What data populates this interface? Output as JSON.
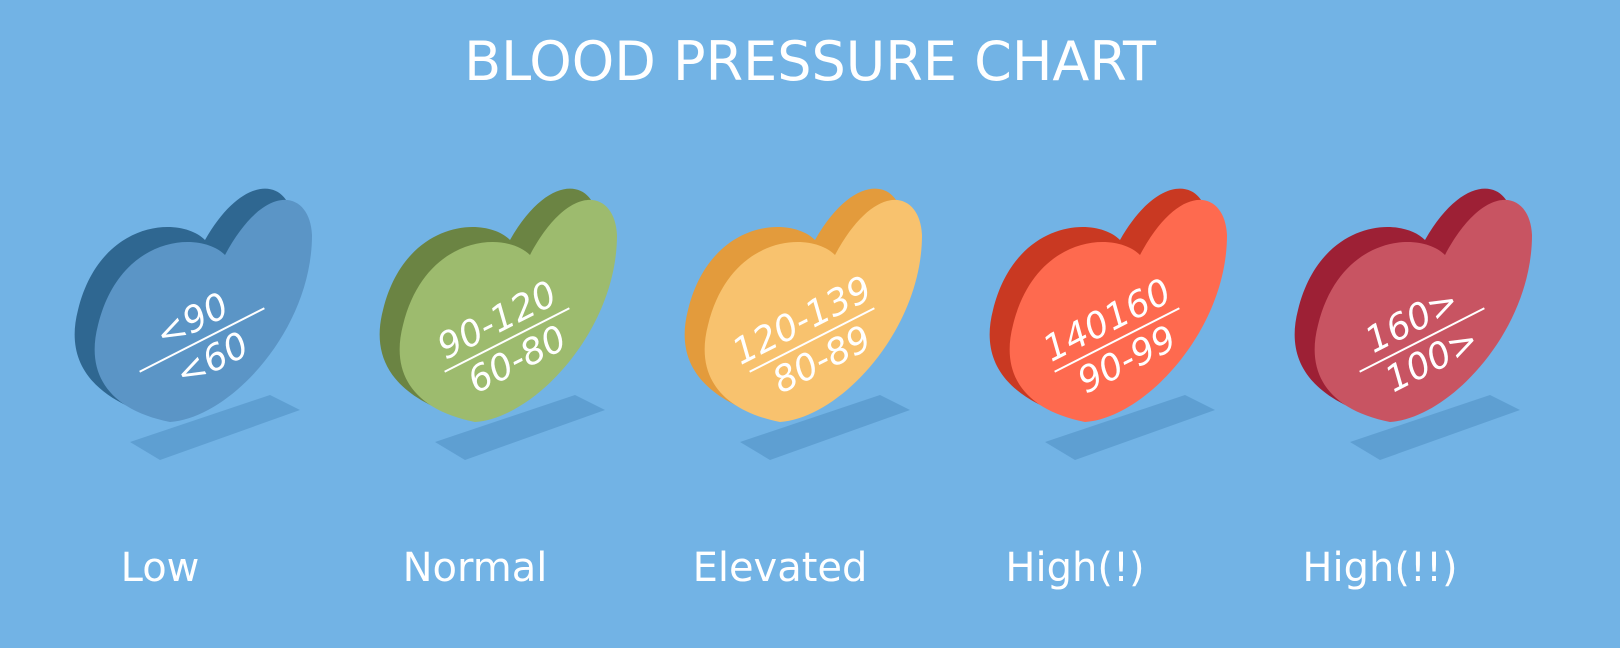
{
  "title": "BLOOD PRESSURE CHART",
  "categories": [
    {
      "label": "Low",
      "systolic": "<90",
      "diastolic": "<60",
      "face": "#5b95c6",
      "side": "#2f6791"
    },
    {
      "label": "Normal",
      "systolic": "90-120",
      "diastolic": "60-80",
      "face": "#9dbb6e",
      "side": "#6b8443"
    },
    {
      "label": "Elevated",
      "systolic": "120-139",
      "diastolic": "80-89",
      "face": "#f8c26e",
      "side": "#e39b3c"
    },
    {
      "label": "High(!)",
      "systolic": "140160",
      "diastolic": "90-99",
      "face": "#fe6a4f",
      "side": "#c93922"
    },
    {
      "label": "High(!!)",
      "systolic": "160>",
      "diastolic": "100>",
      "face": "#c85462",
      "side": "#9d2035"
    }
  ],
  "shadow_color": "#5e9fd2"
}
